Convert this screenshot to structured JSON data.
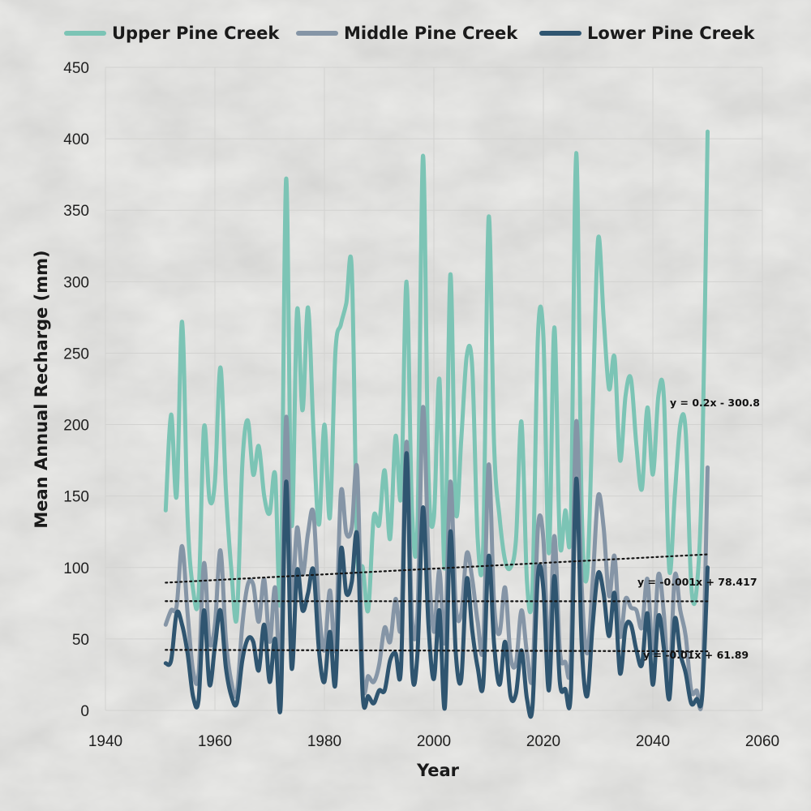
{
  "chart_data": {
    "type": "line",
    "xlabel": "Year",
    "ylabel": "Mean Annual Recharge (mm)",
    "xlim": [
      1940,
      2060
    ],
    "ylim": [
      0,
      450
    ],
    "xticks": [
      1940,
      1960,
      1980,
      2000,
      2020,
      2040,
      2060
    ],
    "yticks": [
      0,
      50,
      100,
      150,
      200,
      250,
      300,
      350,
      400,
      450
    ],
    "grid": true,
    "legend_position": "top",
    "x": [
      1951,
      1952,
      1953,
      1954,
      1955,
      1956,
      1957,
      1958,
      1959,
      1960,
      1961,
      1962,
      1963,
      1964,
      1965,
      1966,
      1967,
      1968,
      1969,
      1970,
      1971,
      1972,
      1973,
      1974,
      1975,
      1976,
      1977,
      1978,
      1979,
      1980,
      1981,
      1982,
      1983,
      1984,
      1985,
      1986,
      1987,
      1988,
      1989,
      1990,
      1991,
      1992,
      1993,
      1994,
      1995,
      1996,
      1997,
      1998,
      1999,
      2000,
      2001,
      2002,
      2003,
      2004,
      2005,
      2006,
      2007,
      2008,
      2009,
      2010,
      2011,
      2012,
      2013,
      2014,
      2015,
      2016,
      2017,
      2018,
      2019,
      2020,
      2021,
      2022,
      2023,
      2024,
      2025,
      2026,
      2027,
      2028,
      2029,
      2030,
      2031,
      2032,
      2033,
      2034,
      2035,
      2036,
      2037,
      2038,
      2039,
      2040,
      2041,
      2042,
      2043,
      2044,
      2045,
      2046,
      2047,
      2048,
      2049,
      2050
    ],
    "series": [
      {
        "name": "Upper Pine Creek",
        "color": "#7cc4b5",
        "values": [
          140,
          207,
          150,
          272,
          135,
          85,
          80,
          198,
          148,
          160,
          240,
          155,
          98,
          65,
          172,
          203,
          165,
          185,
          150,
          138,
          165,
          80,
          372,
          130,
          280,
          210,
          282,
          195,
          130,
          200,
          135,
          250,
          270,
          285,
          308,
          110,
          100,
          70,
          135,
          130,
          168,
          120,
          192,
          150,
          300,
          140,
          130,
          388,
          165,
          135,
          232,
          100,
          305,
          140,
          190,
          248,
          240,
          120,
          115,
          345,
          185,
          135,
          105,
          100,
          120,
          202,
          90,
          85,
          262,
          262,
          110,
          268,
          118,
          140,
          130,
          390,
          140,
          95,
          210,
          330,
          275,
          225,
          247,
          175,
          220,
          232,
          185,
          155,
          212,
          165,
          220,
          220,
          98,
          150,
          200,
          195,
          88,
          85,
          170,
          405
        ],
        "trend": {
          "slope": 0.2,
          "intercept": -300.8,
          "label": "y = 0.2x - 300.8",
          "x_range": [
            1951,
            2050
          ]
        }
      },
      {
        "name": "Middle Pine Creek",
        "color": "#8595a6",
        "values": [
          60,
          70,
          73,
          115,
          68,
          28,
          25,
          103,
          48,
          60,
          112,
          50,
          20,
          12,
          60,
          88,
          88,
          62,
          92,
          48,
          86,
          28,
          205,
          80,
          128,
          95,
          124,
          138,
          72,
          42,
          84,
          43,
          152,
          124,
          128,
          168,
          22,
          24,
          20,
          32,
          58,
          48,
          78,
          60,
          188,
          65,
          68,
          212,
          108,
          55,
          98,
          48,
          160,
          73,
          68,
          110,
          92,
          62,
          45,
          172,
          74,
          54,
          86,
          38,
          33,
          70,
          40,
          24,
          128,
          120,
          38,
          122,
          42,
          34,
          36,
          202,
          86,
          40,
          90,
          150,
          128,
          80,
          108,
          52,
          78,
          72,
          70,
          58,
          92,
          40,
          95,
          68,
          18,
          94,
          70,
          52,
          14,
          14,
          12,
          170
        ],
        "trend": {
          "slope": -0.001,
          "intercept": 78.417,
          "label": "y = -0.001x + 78.417",
          "x_range": [
            1951,
            2050
          ]
        }
      },
      {
        "name": "Lower Pine Creek",
        "color": "#2f5570",
        "values": [
          33,
          35,
          68,
          60,
          40,
          10,
          7,
          70,
          18,
          45,
          70,
          30,
          10,
          5,
          35,
          50,
          48,
          28,
          60,
          20,
          50,
          2,
          160,
          30,
          98,
          70,
          82,
          98,
          42,
          20,
          55,
          18,
          112,
          82,
          90,
          122,
          10,
          10,
          5,
          14,
          14,
          35,
          40,
          30,
          180,
          30,
          40,
          142,
          60,
          22,
          70,
          2,
          125,
          40,
          22,
          92,
          56,
          30,
          18,
          108,
          46,
          18,
          48,
          10,
          12,
          42,
          8,
          2,
          95,
          85,
          14,
          94,
          20,
          15,
          12,
          162,
          46,
          10,
          60,
          96,
          82,
          52,
          82,
          26,
          58,
          60,
          42,
          32,
          68,
          18,
          66,
          44,
          8,
          64,
          40,
          26,
          5,
          8,
          10,
          100
        ],
        "trend": {
          "slope": -0.01,
          "intercept": 61.89,
          "label": "y = -0.01x + 61.89",
          "x_range": [
            1951,
            2050
          ]
        }
      }
    ]
  }
}
